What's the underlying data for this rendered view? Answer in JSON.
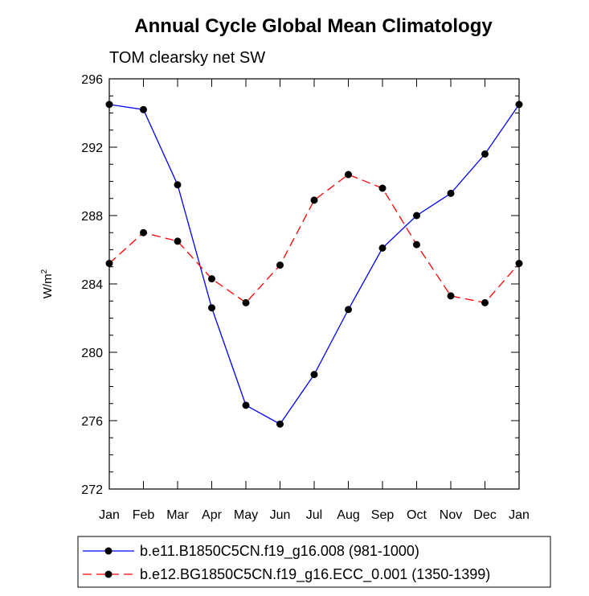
{
  "chart_data": {
    "type": "line",
    "title": "Annual Cycle Global Mean Climatology",
    "subtitle": "TOM clearsky net SW",
    "ylabel": "W/m",
    "ylabel_sup": "2",
    "xlabel": "",
    "categories": [
      "Jan",
      "Feb",
      "Mar",
      "Apr",
      "May",
      "Jun",
      "Jul",
      "Aug",
      "Sep",
      "Oct",
      "Nov",
      "Dec",
      "Jan"
    ],
    "ylim": [
      272,
      296
    ],
    "yticks": [
      272,
      276,
      280,
      284,
      288,
      292,
      296
    ],
    "ytick_labels": [
      "272",
      "276",
      "280",
      "284",
      "288",
      "292",
      "296"
    ],
    "series": [
      {
        "name": "b.e11.B1850C5CN.f19_g16.008 (981-1000)",
        "color": "#0000ff",
        "dash": "solid",
        "values": [
          294.5,
          294.2,
          289.8,
          282.6,
          276.9,
          275.8,
          278.7,
          282.5,
          286.1,
          288.0,
          289.3,
          291.6,
          294.5
        ]
      },
      {
        "name": "b.e12.BG1850C5CN.f19_g16.ECC_0.001 (1350-1399)",
        "color": "#ff0000",
        "dash": "dashed",
        "values": [
          285.2,
          287.0,
          286.5,
          284.3,
          282.9,
          285.1,
          288.9,
          290.4,
          289.6,
          286.3,
          283.3,
          282.9,
          285.2
        ]
      }
    ],
    "legend_position": "bottom"
  }
}
